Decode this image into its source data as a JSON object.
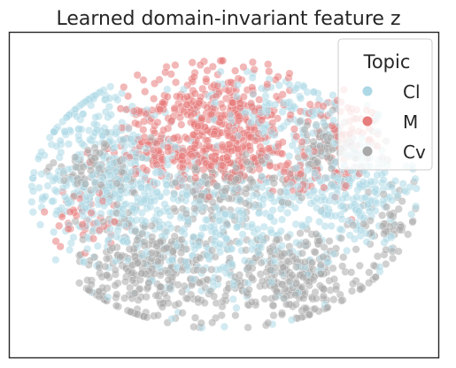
{
  "chart_data": {
    "type": "scatter",
    "title": "Learned domain-invariant feature z",
    "xlabel": "",
    "ylabel": "",
    "xlim": [
      -1,
      1
    ],
    "ylim": [
      -1,
      1
    ],
    "grid": false,
    "ticks_visible": false,
    "legend": {
      "title": "Topic",
      "placement": "top-right"
    },
    "series": [
      {
        "name": "Cl",
        "color": "#ADD8E6",
        "regions": [
          {
            "cx": -0.55,
            "cy": 0.05,
            "rx": 0.38,
            "ry": 0.42,
            "count": 340
          },
          {
            "cx": 0.0,
            "cy": -0.25,
            "rx": 0.55,
            "ry": 0.45,
            "count": 360
          },
          {
            "cx": 0.62,
            "cy": 0.05,
            "rx": 0.32,
            "ry": 0.4,
            "count": 240
          },
          {
            "cx": 0.25,
            "cy": 0.55,
            "rx": 0.45,
            "ry": 0.25,
            "count": 130
          },
          {
            "cx": -0.65,
            "cy": 0.5,
            "rx": 0.25,
            "ry": 0.25,
            "count": 90
          }
        ]
      },
      {
        "name": "M",
        "color": "#E77C7C",
        "regions": [
          {
            "cx": -0.05,
            "cy": 0.55,
            "rx": 0.38,
            "ry": 0.32,
            "count": 320
          },
          {
            "cx": 0.1,
            "cy": 0.25,
            "rx": 0.3,
            "ry": 0.2,
            "count": 150
          },
          {
            "cx": -0.3,
            "cy": 0.3,
            "rx": 0.25,
            "ry": 0.2,
            "count": 110
          },
          {
            "cx": 0.6,
            "cy": 0.45,
            "rx": 0.18,
            "ry": 0.18,
            "count": 60
          },
          {
            "cx": -0.7,
            "cy": -0.15,
            "rx": 0.2,
            "ry": 0.2,
            "count": 45
          },
          {
            "cx": 0.5,
            "cy": 0.1,
            "rx": 0.2,
            "ry": 0.2,
            "count": 40
          }
        ]
      },
      {
        "name": "Cv",
        "color": "#A9A9A9",
        "regions": [
          {
            "cx": -0.35,
            "cy": -0.5,
            "rx": 0.38,
            "ry": 0.35,
            "count": 300
          },
          {
            "cx": 0.35,
            "cy": -0.55,
            "rx": 0.38,
            "ry": 0.32,
            "count": 280
          },
          {
            "cx": 0.0,
            "cy": 0.05,
            "rx": 0.35,
            "ry": 0.2,
            "count": 150
          },
          {
            "cx": 0.5,
            "cy": 0.3,
            "rx": 0.25,
            "ry": 0.2,
            "count": 90
          },
          {
            "cx": -0.6,
            "cy": 0.15,
            "rx": 0.25,
            "ry": 0.2,
            "count": 90
          },
          {
            "cx": 0.8,
            "cy": -0.2,
            "rx": 0.15,
            "ry": 0.2,
            "count": 50
          }
        ]
      }
    ]
  }
}
